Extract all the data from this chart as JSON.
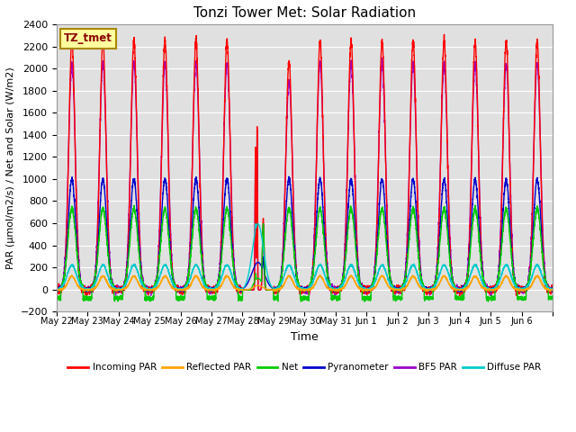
{
  "title": "Tonzi Tower Met: Solar Radiation",
  "xlabel": "Time",
  "ylabel": "PAR (μmol/m2/s) / Net and Solar (W/m2)",
  "ylim": [
    -200,
    2400
  ],
  "yticks": [
    -200,
    0,
    200,
    400,
    600,
    800,
    1000,
    1200,
    1400,
    1600,
    1800,
    2000,
    2200,
    2400
  ],
  "background_color": "#ffffff",
  "plot_bg_color": "#e0e0e0",
  "grid_color": "#ffffff",
  "annotation_label": "TZ_tmet",
  "annotation_color": "#8B0000",
  "annotation_bg": "#FFFFA0",
  "annotation_edge": "#AA8800",
  "series": {
    "incoming_par": {
      "color": "#FF0000",
      "label": "Incoming PAR"
    },
    "reflected_par": {
      "color": "#FFA500",
      "label": "Reflected PAR"
    },
    "net": {
      "color": "#00CC00",
      "label": "Net"
    },
    "pyranometer": {
      "color": "#0000CC",
      "label": "Pyranometer"
    },
    "bf5_par": {
      "color": "#9900CC",
      "label": "BF5 PAR"
    },
    "diffuse_par": {
      "color": "#00CCCC",
      "label": "Diffuse PAR"
    }
  },
  "xtick_labels": [
    "May 22",
    "May 23",
    "May 24",
    "May 25",
    "May 26",
    "May 27",
    "May 28",
    "May 29",
    "May 30",
    "May 31",
    "Jun 1",
    "Jun 2",
    "Jun 3",
    "Jun 4",
    "Jun 5",
    "Jun 6"
  ],
  "n_days": 16,
  "pts_per_day": 288,
  "title_fontsize": 11,
  "label_fontsize": 9,
  "tick_fontsize": 8,
  "lw": 1.0,
  "figsize": [
    6.4,
    4.8
  ],
  "dpi": 100
}
